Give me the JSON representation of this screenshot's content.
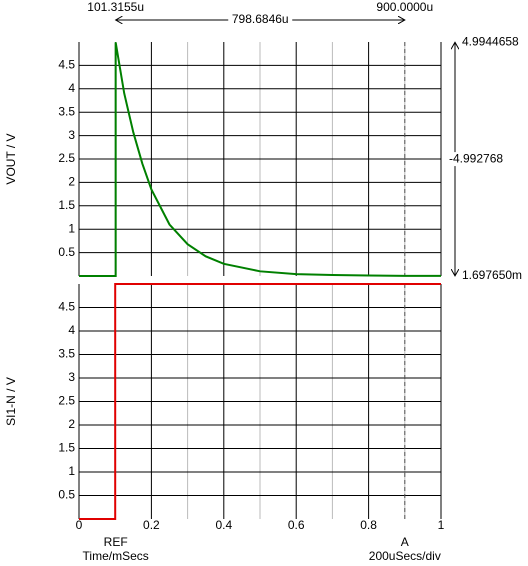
{
  "chart_data": [
    {
      "type": "line",
      "ylabel": "VOUT / V",
      "xlim": [
        0,
        1
      ],
      "xticks": [
        0,
        0.2,
        0.4,
        0.6,
        0.8,
        1
      ],
      "minor_xticks": [
        0.1,
        0.3,
        0.5,
        0.7,
        0.9
      ],
      "ylim": [
        0,
        5
      ],
      "yticks": [
        0.5,
        1,
        1.5,
        2,
        2.5,
        3,
        3.5,
        4,
        4.5
      ],
      "grid": true,
      "series": [
        {
          "color": "#008000",
          "x": [
            0,
            0.1013,
            0.1013,
            0.125,
            0.15,
            0.175,
            0.2,
            0.25,
            0.3,
            0.35,
            0.4,
            0.5,
            0.6,
            0.7,
            0.8,
            0.9,
            1
          ],
          "values": [
            0,
            0,
            4.99,
            3.9,
            3.07,
            2.4,
            1.85,
            1.1,
            0.68,
            0.42,
            0.26,
            0.1,
            0.04,
            0.02,
            0.01,
            0.0017,
            0.0017
          ]
        }
      ]
    },
    {
      "type": "line",
      "ylabel": "SI1-N / V",
      "xlabel": "Time/mSecs",
      "xlim": [
        0,
        1
      ],
      "xticks": [
        0,
        0.2,
        0.4,
        0.6,
        0.8,
        1
      ],
      "minor_xticks": [
        0.1,
        0.3,
        0.5,
        0.7,
        0.9
      ],
      "ylim": [
        0,
        5
      ],
      "yticks": [
        0.5,
        1,
        1.5,
        2,
        2.5,
        3,
        3.5,
        4,
        4.5
      ],
      "grid": true,
      "series": [
        {
          "color": "#e00000",
          "x": [
            0,
            0.1,
            0.1,
            1
          ],
          "values": [
            0,
            0,
            5,
            5
          ]
        }
      ]
    }
  ],
  "cursors": {
    "ref": {
      "label": "REF",
      "x": 0.1013155,
      "readout": "101.3155u"
    },
    "a": {
      "label": "A",
      "x": 0.9,
      "readout": "900.0000u"
    },
    "delta_x": "798.6846u",
    "y_top": 4.9944658,
    "y_bottom": {
      "value": 0.00169765,
      "label": "1.697650m"
    },
    "delta_y": -4.992768,
    "div": "200uSecs/div"
  }
}
